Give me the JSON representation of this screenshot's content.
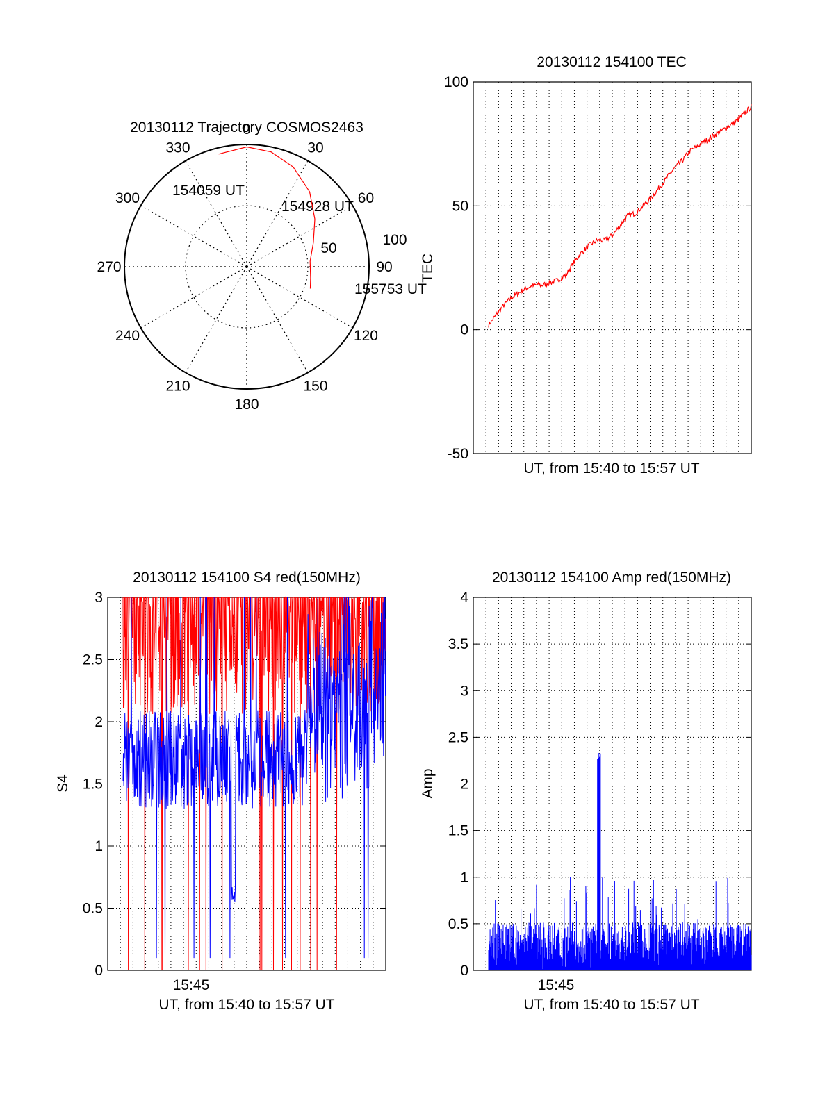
{
  "colors": {
    "red": "#ff0000",
    "blue": "#0000ff",
    "axis": "#000000",
    "grid": "#000000"
  },
  "chart_data": [
    {
      "type": "polar",
      "title": "20130112 Trajectory COSMOS2463",
      "angle_labels": [
        "0",
        "30",
        "60",
        "90",
        "120",
        "150",
        "180",
        "210",
        "240",
        "270",
        "300",
        "330"
      ],
      "radial_labels": [
        "50",
        "100"
      ],
      "annotations": [
        "154059 UT",
        "154928 UT",
        "155753 UT"
      ],
      "series": [
        {
          "color": "#ff0000",
          "points": [
            [
              -14,
              95
            ],
            [
              0,
              98
            ],
            [
              12,
              96
            ],
            [
              25,
              90
            ],
            [
              40,
              80
            ],
            [
              55,
              68
            ],
            [
              70,
              58
            ],
            [
              85,
              52
            ],
            [
              100,
              53
            ],
            [
              109,
              55
            ]
          ]
        }
      ],
      "grid": true
    },
    {
      "type": "line",
      "title": "20130112 154100 TEC",
      "ylabel": "TEC",
      "xlabel": "UT, from 15:40 to 15:57 UT",
      "ylim": [
        -50,
        100
      ],
      "yticks": [
        "-50",
        "0",
        "50",
        "100"
      ],
      "grid": true,
      "series": [
        {
          "color": "#ff0000",
          "x": [
            0,
            0.5,
            1,
            1.5,
            2,
            2.5,
            3,
            3.5,
            4,
            4.5,
            5,
            5.5,
            6,
            6.5,
            7,
            7.5,
            8,
            8.5,
            9,
            9.5,
            10,
            10.5,
            11,
            11.5,
            12,
            12.5,
            13,
            13.5,
            14,
            14.5,
            15,
            15.5,
            16,
            16.5,
            17
          ],
          "y": [
            2,
            6,
            10,
            13,
            15,
            17,
            18,
            18,
            19,
            20,
            22,
            27,
            31,
            34,
            36,
            36,
            38,
            42,
            46,
            47,
            50,
            53,
            57,
            61,
            65,
            68,
            72,
            74,
            76,
            78,
            80,
            82,
            84,
            87,
            90
          ]
        }
      ]
    },
    {
      "type": "line",
      "title": "20130112 154100 S4 red(150MHz)",
      "ylabel": "S4",
      "xlabel": "UT, from 15:40 to 15:57 UT",
      "tick_label": "15:45",
      "ylim": [
        0,
        3
      ],
      "yticks": [
        "0",
        "0.5",
        "1",
        "1.5",
        "2",
        "2.5",
        "3"
      ],
      "grid": true,
      "series": [
        {
          "color": "#ff0000",
          "level": 2.7,
          "spread": 0.8
        },
        {
          "color": "#0000ff",
          "level": 1.7,
          "spread": 0.4,
          "dip_x": 0.42,
          "dip_y": 0.5
        }
      ]
    },
    {
      "type": "line",
      "title": "20130112 154100 Amp red(150MHz)",
      "ylabel": "Amp",
      "xlabel": "UT, from 15:40 to 15:57 UT",
      "tick_label": "15:45",
      "ylim": [
        0,
        4
      ],
      "yticks": [
        "0",
        "0.5",
        "1",
        "1.5",
        "2",
        "2.5",
        "3",
        "3.5",
        "4"
      ],
      "grid": true,
      "series": [
        {
          "color": "#0000ff",
          "baseline": 0.3,
          "spike_x": 0.42,
          "spike_y": 2.35
        }
      ]
    }
  ]
}
